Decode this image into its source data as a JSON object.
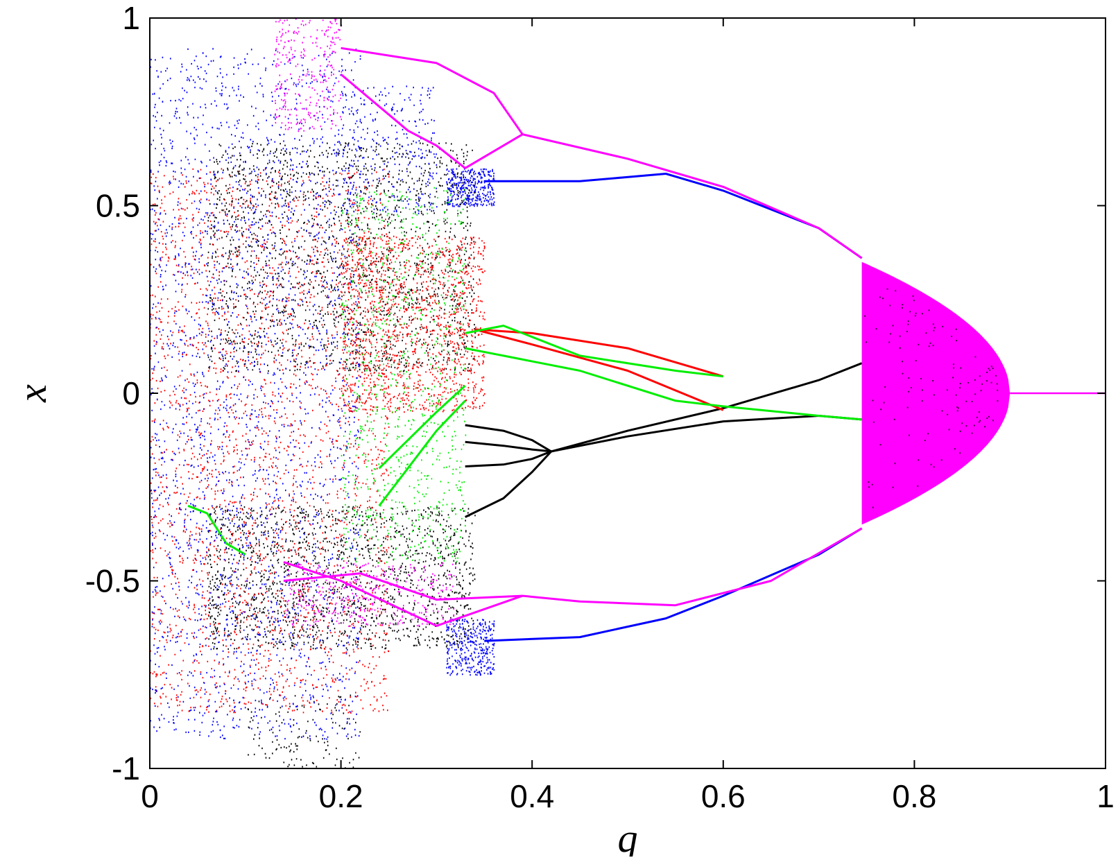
{
  "chart_data": {
    "type": "scatter",
    "title": "",
    "xlabel": "q",
    "ylabel": "x",
    "xlim": [
      0,
      1
    ],
    "ylim": [
      -1,
      1
    ],
    "xticks": [
      "0",
      "0.2",
      "0.4",
      "0.6",
      "0.8",
      "1"
    ],
    "xtick_values": [
      0,
      0.2,
      0.4,
      0.6,
      0.8,
      1
    ],
    "yticks": [
      "-1",
      "-0.5",
      "0",
      "0.5",
      "1"
    ],
    "ytick_values": [
      -1,
      -0.5,
      0,
      0.5,
      1
    ],
    "grid": false,
    "legend": "none",
    "description_of_data": "Bifurcation diagram: attractor points x versus parameter q, drawn in five colours.",
    "colors": {
      "black": "#000000",
      "red": "#ff0000",
      "green": "#00ee00",
      "blue": "#0000ff",
      "magenta": "#ff00ff"
    },
    "series": [
      {
        "color": "#000000",
        "branches": [
          {
            "q": [
              0.42,
              0.5,
              0.6,
              0.7,
              0.745
            ],
            "x": [
              -0.155,
              -0.1,
              -0.04,
              0.035,
              0.08
            ]
          },
          {
            "q": [
              0.42,
              0.5,
              0.6,
              0.7,
              0.745
            ],
            "x": [
              -0.155,
              -0.115,
              -0.075,
              -0.06,
              -0.07
            ]
          },
          {
            "q": [
              0.33,
              0.37,
              0.4,
              0.42
            ],
            "x": [
              -0.085,
              -0.1,
              -0.125,
              -0.155
            ]
          },
          {
            "q": [
              0.33,
              0.37,
              0.4,
              0.42
            ],
            "x": [
              -0.13,
              -0.14,
              -0.15,
              -0.155
            ]
          },
          {
            "q": [
              0.33,
              0.37,
              0.4,
              0.42
            ],
            "x": [
              -0.195,
              -0.19,
              -0.175,
              -0.155
            ]
          },
          {
            "q": [
              0.33,
              0.37,
              0.4,
              0.42
            ],
            "x": [
              -0.33,
              -0.28,
              -0.21,
              -0.155
            ]
          }
        ],
        "clouds": [
          {
            "q": [
              0.06,
              0.34
            ],
            "x": [
              0.06,
              0.67
            ],
            "n": 1800
          },
          {
            "q": [
              0.06,
              0.34
            ],
            "x": [
              -0.68,
              -0.3
            ],
            "n": 1600
          },
          {
            "q": [
              0.1,
              0.22
            ],
            "x": [
              -1.0,
              -0.8
            ],
            "n": 120
          }
        ]
      },
      {
        "color": "#ff0000",
        "branches": [
          {
            "q": [
              0.34,
              0.4,
              0.5,
              0.6
            ],
            "x": [
              0.17,
              0.16,
              0.12,
              0.045
            ]
          },
          {
            "q": [
              0.34,
              0.4,
              0.5,
              0.6
            ],
            "x": [
              0.17,
              0.13,
              0.06,
              -0.045
            ]
          }
        ],
        "clouds": [
          {
            "q": [
              0.0,
              0.25
            ],
            "x": [
              -0.85,
              0.6
            ],
            "n": 2600
          },
          {
            "q": [
              0.2,
              0.35
            ],
            "x": [
              -0.05,
              0.42
            ],
            "n": 1400
          }
        ]
      },
      {
        "color": "#00ee00",
        "branches": [
          {
            "q": [
              0.33,
              0.37,
              0.45,
              0.55,
              0.6
            ],
            "x": [
              0.16,
              0.18,
              0.1,
              0.06,
              0.045
            ]
          },
          {
            "q": [
              0.33,
              0.37,
              0.45,
              0.55,
              0.6,
              0.7,
              0.745
            ],
            "x": [
              0.12,
              0.1,
              0.06,
              -0.02,
              -0.035,
              -0.06,
              -0.07
            ]
          },
          {
            "q": [
              0.24,
              0.3,
              0.33
            ],
            "x": [
              -0.3,
              -0.1,
              -0.02
            ]
          },
          {
            "q": [
              0.24,
              0.3,
              0.33
            ],
            "x": [
              -0.2,
              -0.05,
              0.02
            ]
          },
          {
            "q": [
              0.04,
              0.06,
              0.08,
              0.1
            ],
            "x": [
              -0.3,
              -0.32,
              -0.4,
              -0.43
            ]
          }
        ],
        "clouds": [
          {
            "q": [
              0.2,
              0.33
            ],
            "x": [
              -0.45,
              0.55
            ],
            "n": 900
          }
        ]
      },
      {
        "color": "#0000ff",
        "branches": [
          {
            "q": [
              0.35,
              0.45,
              0.54,
              0.6,
              0.7,
              0.745
            ],
            "x": [
              0.565,
              0.565,
              0.585,
              0.54,
              0.44,
              0.36
            ]
          },
          {
            "q": [
              0.35,
              0.45,
              0.54,
              0.6,
              0.7,
              0.745
            ],
            "x": [
              -0.66,
              -0.65,
              -0.6,
              -0.54,
              -0.43,
              -0.36
            ]
          }
        ],
        "clouds": [
          {
            "q": [
              0.0,
              0.22
            ],
            "x": [
              -0.92,
              0.92
            ],
            "n": 2600
          },
          {
            "q": [
              0.31,
              0.36
            ],
            "x": [
              0.5,
              0.6
            ],
            "n": 350
          },
          {
            "q": [
              0.31,
              0.36
            ],
            "x": [
              -0.75,
              -0.6
            ],
            "n": 350
          },
          {
            "q": [
              0.2,
              0.3
            ],
            "x": [
              0.48,
              0.82
            ],
            "n": 300
          }
        ]
      },
      {
        "color": "#ff00ff",
        "branches": [
          {
            "q": [
              0.39,
              0.5,
              0.6,
              0.7,
              0.745
            ],
            "x": [
              0.69,
              0.625,
              0.55,
              0.44,
              0.36
            ]
          },
          {
            "q": [
              0.39,
              0.45,
              0.55,
              0.65,
              0.745
            ],
            "x": [
              -0.54,
              -0.555,
              -0.565,
              -0.5,
              -0.36
            ]
          },
          {
            "q": [
              0.2,
              0.3,
              0.36,
              0.39
            ],
            "x": [
              0.92,
              0.88,
              0.8,
              0.69
            ]
          },
          {
            "q": [
              0.2,
              0.27,
              0.3,
              0.33,
              0.39
            ],
            "x": [
              0.85,
              0.7,
              0.66,
              0.6,
              0.69
            ]
          },
          {
            "q": [
              0.14,
              0.2,
              0.3,
              0.39
            ],
            "x": [
              -0.45,
              -0.5,
              -0.62,
              -0.54
            ]
          },
          {
            "q": [
              0.14,
              0.22,
              0.3,
              0.39
            ],
            "x": [
              -0.5,
              -0.48,
              -0.55,
              -0.54
            ]
          }
        ],
        "clouds": [
          {
            "q": [
              0.13,
              0.2
            ],
            "x": [
              0.7,
              1.0
            ],
            "n": 300
          },
          {
            "q": [
              0.14,
              0.32
            ],
            "x": [
              -0.62,
              -0.45
            ],
            "n": 350
          }
        ],
        "bands": [
          {
            "q": [
              0.745,
              0.9
            ],
            "x_envelope": [
              0.35,
              0.0
            ],
            "note": "dense chaotic band, envelope closes at x=0 near q=0.9"
          }
        ],
        "tail": {
          "q": [
            0.9,
            1.0
          ],
          "x": [
            0.0,
            0.0
          ]
        }
      }
    ]
  }
}
